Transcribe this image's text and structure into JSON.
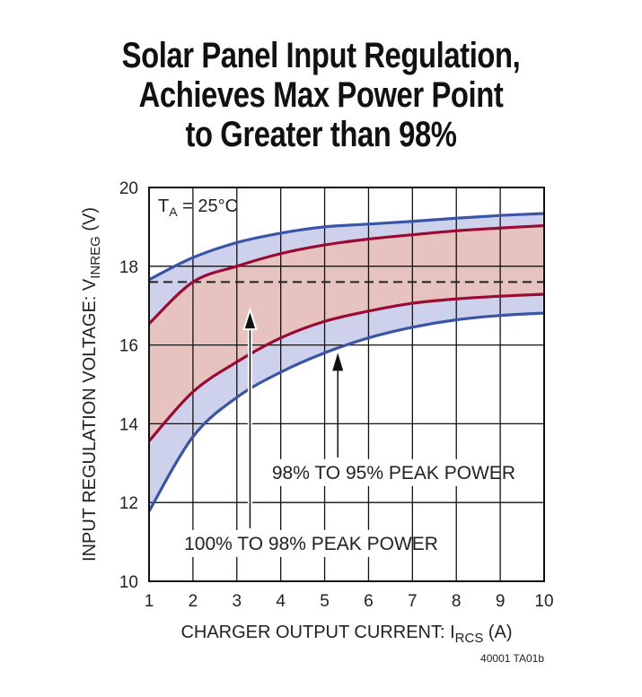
{
  "chart_data": {
    "type": "area",
    "title": [
      "Solar Panel Input Regulation,",
      "Achieves Max Power Point",
      "to Greater than 98%"
    ],
    "xlabel": {
      "main": "CHARGER OUTPUT CURRENT: I",
      "sub": "RCS",
      "unit": " (A)"
    },
    "ylabel": {
      "main": "INPUT REGULATION VOLTAGE: V",
      "sub": "INREG",
      "unit": " (V)"
    },
    "xlim": [
      1,
      10
    ],
    "ylim": [
      10,
      20
    ],
    "xticks": [
      1,
      2,
      3,
      4,
      5,
      6,
      7,
      8,
      9,
      10
    ],
    "yticks": [
      10,
      12,
      14,
      16,
      18,
      20
    ],
    "grid": true,
    "annotation_condition": {
      "main": "T",
      "sub": "A",
      "rest": " = 25°C"
    },
    "x": [
      1,
      2,
      3,
      4,
      5,
      6,
      7,
      8,
      9,
      10
    ],
    "series": [
      {
        "role": "98-95 upper bound",
        "color": "#3a55a8",
        "values": [
          17.66,
          18.22,
          18.6,
          18.84,
          19.0,
          19.07,
          19.14,
          19.22,
          19.29,
          19.34
        ]
      },
      {
        "role": "100-98 upper bound",
        "color": "#9b0a34",
        "values": [
          16.54,
          17.6,
          18.0,
          18.32,
          18.54,
          18.69,
          18.8,
          18.9,
          18.97,
          19.03
        ]
      },
      {
        "role": "100-98 lower bound",
        "color": "#9b0a34",
        "values": [
          13.56,
          14.81,
          15.57,
          16.18,
          16.6,
          16.86,
          17.06,
          17.17,
          17.24,
          17.29
        ]
      },
      {
        "role": "98-95 lower bound",
        "color": "#3a55a8",
        "values": [
          11.78,
          13.67,
          14.67,
          15.31,
          15.8,
          16.18,
          16.45,
          16.64,
          16.75,
          16.81
        ]
      }
    ],
    "band_colors": {
      "outer": "#cdd1ec",
      "inner": "#e7c3bf"
    },
    "dashed_reference": 17.6,
    "labels": [
      {
        "text": "98% TO 95% PEAK POWER",
        "x": 3.8,
        "y": 12.6,
        "arrow_x": 5.3,
        "arrow_to": 15.8
      },
      {
        "text": "100% TO 98% PEAK POWER",
        "x": 1.8,
        "y": 10.8,
        "arrow_x": 3.3,
        "arrow_to": 16.9
      }
    ],
    "footnote": "40001 TA01b"
  }
}
